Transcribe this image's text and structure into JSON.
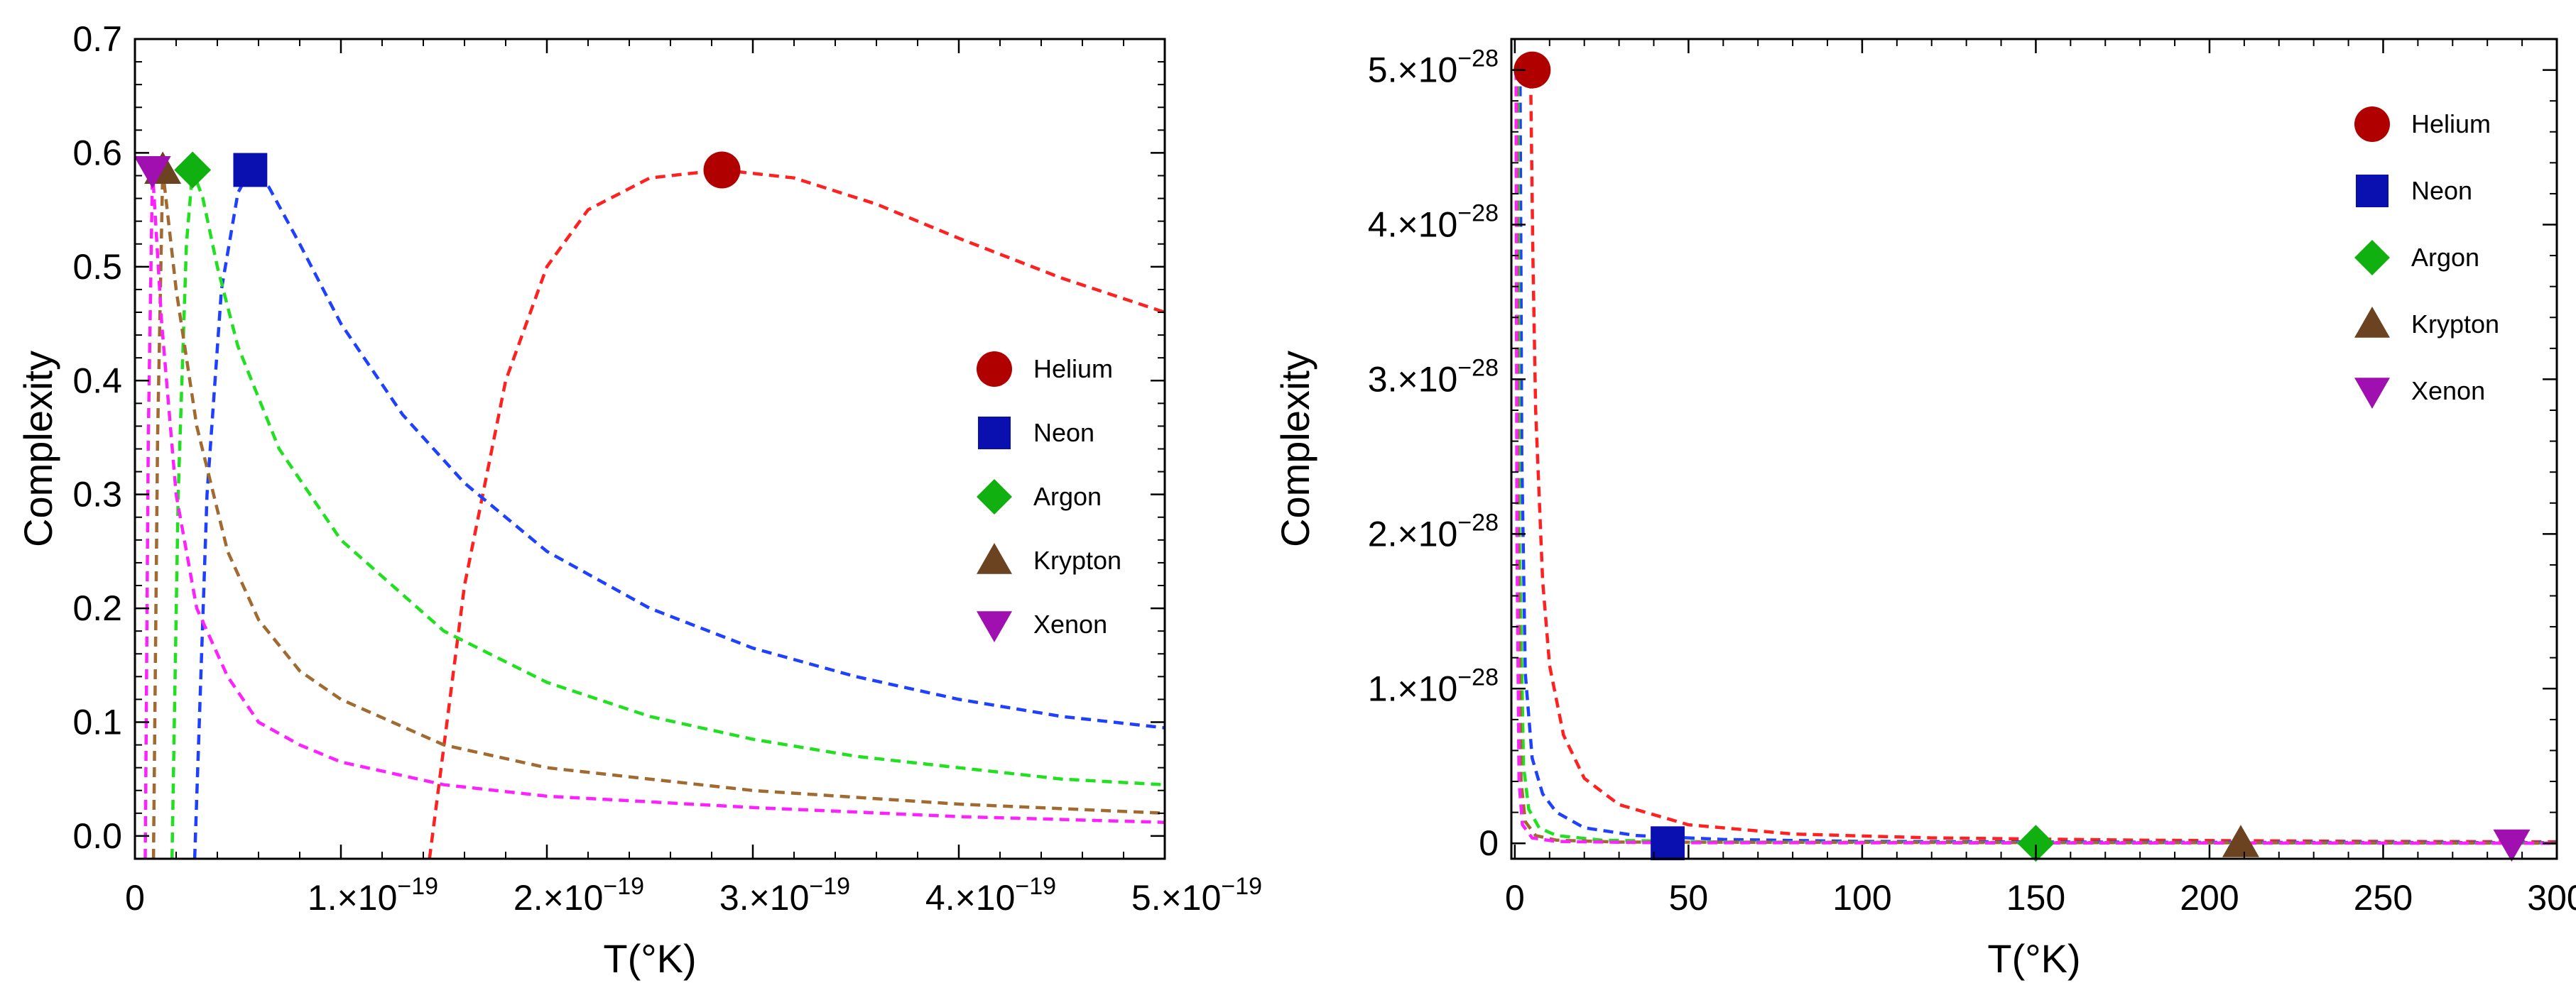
{
  "chart_data": [
    {
      "type": "line",
      "title": "",
      "xlabel": "T(°K)",
      "ylabel": "Complexity",
      "xlim": [
        0,
        5e-19
      ],
      "ylim": [
        -0.02,
        0.7
      ],
      "x_ticks": [
        {
          "value": 0,
          "label": "0"
        },
        {
          "value": 1e-19,
          "base": "1.×10",
          "exp": "−19"
        },
        {
          "value": 2e-19,
          "base": "2.×10",
          "exp": "−19"
        },
        {
          "value": 3e-19,
          "base": "3.×10",
          "exp": "−19"
        },
        {
          "value": 4e-19,
          "base": "4.×10",
          "exp": "−19"
        },
        {
          "value": 5e-19,
          "base": "5.×10",
          "exp": "−19"
        }
      ],
      "y_ticks": [
        {
          "value": 0,
          "label": "0.0"
        },
        {
          "value": 0.1,
          "label": "0.1"
        },
        {
          "value": 0.2,
          "label": "0.2"
        },
        {
          "value": 0.3,
          "label": "0.3"
        },
        {
          "value": 0.4,
          "label": "0.4"
        },
        {
          "value": 0.5,
          "label": "0.5"
        },
        {
          "value": 0.6,
          "label": "0.6"
        },
        {
          "value": 0.7,
          "label": "0.7"
        }
      ],
      "grid": false,
      "legend_position": "right",
      "series": [
        {
          "name": "Helium",
          "color": "#ff2020",
          "marker": "circle",
          "marker_color": "#b00000",
          "points": [
            [
              1.43e-19,
              -0.02
            ],
            [
              1.6e-19,
              0.22
            ],
            [
              1.8e-19,
              0.4
            ],
            [
              2e-19,
              0.5
            ],
            [
              2.2e-19,
              0.55
            ],
            [
              2.5e-19,
              0.578
            ],
            [
              2.85e-19,
              0.585
            ],
            [
              3.2e-19,
              0.578
            ],
            [
              3.6e-19,
              0.555
            ],
            [
              4e-19,
              0.525
            ],
            [
              4.5e-19,
              0.49
            ],
            [
              5e-19,
              0.46
            ]
          ],
          "peak": [
            2.85e-19,
            0.585
          ]
        },
        {
          "name": "Neon",
          "color": "#2040ff",
          "marker": "square",
          "marker_color": "#0a10b0",
          "points": [
            [
              2.9e-20,
              -0.02
            ],
            [
              3.5e-20,
              0.3
            ],
            [
              4.2e-20,
              0.48
            ],
            [
              5e-20,
              0.565
            ],
            [
              5.6e-20,
              0.585
            ],
            [
              6.5e-20,
              0.57
            ],
            [
              8e-20,
              0.52
            ],
            [
              1e-19,
              0.45
            ],
            [
              1.3e-19,
              0.37
            ],
            [
              1.6e-19,
              0.31
            ],
            [
              2e-19,
              0.25
            ],
            [
              2.5e-19,
              0.2
            ],
            [
              3e-19,
              0.165
            ],
            [
              3.5e-19,
              0.14
            ],
            [
              4e-19,
              0.12
            ],
            [
              4.5e-19,
              0.105
            ],
            [
              5e-19,
              0.095
            ]
          ],
          "peak": [
            5.6e-20,
            0.585
          ]
        },
        {
          "name": "Argon",
          "color": "#20e020",
          "marker": "diamond",
          "marker_color": "#10b010",
          "points": [
            [
              1.8e-20,
              -0.02
            ],
            [
              2.1e-20,
              0.3
            ],
            [
              2.5e-20,
              0.52
            ],
            [
              2.8e-20,
              0.585
            ],
            [
              3.3e-20,
              0.56
            ],
            [
              4e-20,
              0.5
            ],
            [
              5e-20,
              0.43
            ],
            [
              7e-20,
              0.34
            ],
            [
              1e-19,
              0.26
            ],
            [
              1.5e-19,
              0.18
            ],
            [
              2e-19,
              0.135
            ],
            [
              2.5e-19,
              0.105
            ],
            [
              3e-19,
              0.085
            ],
            [
              3.5e-19,
              0.07
            ],
            [
              4e-19,
              0.06
            ],
            [
              4.5e-19,
              0.05
            ],
            [
              5e-19,
              0.045
            ]
          ],
          "peak": [
            2.8e-20,
            0.585
          ]
        },
        {
          "name": "Krypton",
          "color": "#a06a30",
          "marker": "triangle-up",
          "marker_color": "#6b4320",
          "points": [
            [
              9e-21,
              -0.02
            ],
            [
              1.1e-20,
              0.35
            ],
            [
              1.35e-20,
              0.585
            ],
            [
              2e-20,
              0.48
            ],
            [
              3e-20,
              0.36
            ],
            [
              4.5e-20,
              0.25
            ],
            [
              6e-20,
              0.19
            ],
            [
              8e-20,
              0.145
            ],
            [
              1e-19,
              0.12
            ],
            [
              1.5e-19,
              0.08
            ],
            [
              2e-19,
              0.06
            ],
            [
              3e-19,
              0.04
            ],
            [
              4e-19,
              0.028
            ],
            [
              5e-19,
              0.02
            ]
          ],
          "peak": [
            1.35e-20,
            0.585
          ]
        },
        {
          "name": "Xenon",
          "color": "#ff20ff",
          "marker": "triangle-down",
          "marker_color": "#a010b0",
          "points": [
            [
              5e-21,
              -0.02
            ],
            [
              6.5e-21,
              0.35
            ],
            [
              8.5e-21,
              0.585
            ],
            [
              1.3e-20,
              0.45
            ],
            [
              2e-20,
              0.3
            ],
            [
              3e-20,
              0.2
            ],
            [
              4.5e-20,
              0.14
            ],
            [
              6e-20,
              0.1
            ],
            [
              8e-20,
              0.08
            ],
            [
              1e-19,
              0.065
            ],
            [
              1.5e-19,
              0.045
            ],
            [
              2e-19,
              0.035
            ],
            [
              3e-19,
              0.025
            ],
            [
              4e-19,
              0.017
            ],
            [
              5e-19,
              0.012
            ]
          ],
          "peak": [
            8.5e-21,
            0.585
          ]
        }
      ]
    },
    {
      "type": "line",
      "title": "",
      "xlabel": "T(°K)",
      "ylabel": "Complexity",
      "xlim": [
        -1,
        300
      ],
      "ylim": [
        -1e-29,
        5.2e-28
      ],
      "x_ticks": [
        {
          "value": 0,
          "label": "0"
        },
        {
          "value": 50,
          "label": "50"
        },
        {
          "value": 100,
          "label": "100"
        },
        {
          "value": 150,
          "label": "150"
        },
        {
          "value": 200,
          "label": "200"
        },
        {
          "value": 250,
          "label": "250"
        },
        {
          "value": 300,
          "label": "300"
        }
      ],
      "y_ticks": [
        {
          "value": 0,
          "label": "0"
        },
        {
          "value": 1e-28,
          "base": "1.×10",
          "exp": "−28"
        },
        {
          "value": 2e-28,
          "base": "2.×10",
          "exp": "−28"
        },
        {
          "value": 3e-28,
          "base": "3.×10",
          "exp": "−28"
        },
        {
          "value": 4e-28,
          "base": "4.×10",
          "exp": "−28"
        },
        {
          "value": 5e-28,
          "base": "5.×10",
          "exp": "−28"
        }
      ],
      "grid": false,
      "legend_position": "top-right",
      "series": [
        {
          "name": "Helium",
          "color": "#ff2020",
          "marker": "circle",
          "marker_color": "#b00000",
          "points": [
            [
              4.5,
              5.05e-28
            ],
            [
              5.2,
              3.8e-28
            ],
            [
              6,
              2.8e-28
            ],
            [
              8,
              1.7e-28
            ],
            [
              10,
              1.15e-28
            ],
            [
              14,
              7e-29
            ],
            [
              20,
              4.2e-29
            ],
            [
              30,
              2.5e-29
            ],
            [
              50,
              1.2e-29
            ],
            [
              80,
              6e-30
            ],
            [
              120,
              3.5e-30
            ],
            [
              180,
              2e-30
            ],
            [
              250,
              1.2e-30
            ],
            [
              300,
              1e-30
            ]
          ],
          "marker_at": [
            5,
            5e-28
          ]
        },
        {
          "name": "Neon",
          "color": "#2040ff",
          "marker": "square",
          "marker_color": "#0a10b0",
          "points": [
            [
              1.5,
              5e-28
            ],
            [
              2,
              2.5e-28
            ],
            [
              3,
              1.1e-28
            ],
            [
              5,
              5.5e-29
            ],
            [
              8,
              3.2e-29
            ],
            [
              12,
              2e-29
            ],
            [
              20,
              1e-29
            ],
            [
              35,
              5e-30
            ],
            [
              60,
              2.5e-30
            ],
            [
              100,
              1.2e-30
            ],
            [
              200,
              6e-31
            ],
            [
              300,
              4e-31
            ]
          ],
          "marker_at": [
            44,
            0.0
          ]
        },
        {
          "name": "Argon",
          "color": "#20e020",
          "marker": "diamond",
          "marker_color": "#10b010",
          "points": [
            [
              0.9,
              5e-28
            ],
            [
              1.3,
              2e-28
            ],
            [
              2.5,
              5e-29
            ],
            [
              4,
              2.2e-29
            ],
            [
              7,
              1e-29
            ],
            [
              12,
              5e-30
            ],
            [
              25,
              2e-30
            ],
            [
              60,
              8e-31
            ],
            [
              150,
              3e-31
            ],
            [
              300,
              1.5e-31
            ]
          ],
          "marker_at": [
            150,
            0.0
          ]
        },
        {
          "name": "Krypton",
          "color": "#a06a30",
          "marker": "triangle-up",
          "marker_color": "#6b4320",
          "points": [
            [
              0.6,
              5e-28
            ],
            [
              0.9,
              2e-28
            ],
            [
              1.8,
              4e-29
            ],
            [
              3,
              1.4e-29
            ],
            [
              6,
              5e-30
            ],
            [
              12,
              2e-30
            ],
            [
              30,
              8e-31
            ],
            [
              300,
              1e-31
            ]
          ],
          "marker_at": [
            209,
            0.0
          ]
        },
        {
          "name": "Xenon",
          "color": "#ff20ff",
          "marker": "triangle-down",
          "marker_color": "#a010b0",
          "points": [
            [
              0.35,
              5e-28
            ],
            [
              0.6,
              2e-28
            ],
            [
              1.2,
              4e-29
            ],
            [
              2.2,
              1.2e-29
            ],
            [
              5,
              3.5e-30
            ],
            [
              12,
              1.2e-30
            ],
            [
              40,
              4e-31
            ],
            [
              300,
              5e-32
            ]
          ],
          "marker_at": [
            287,
            0.0
          ]
        }
      ]
    }
  ]
}
